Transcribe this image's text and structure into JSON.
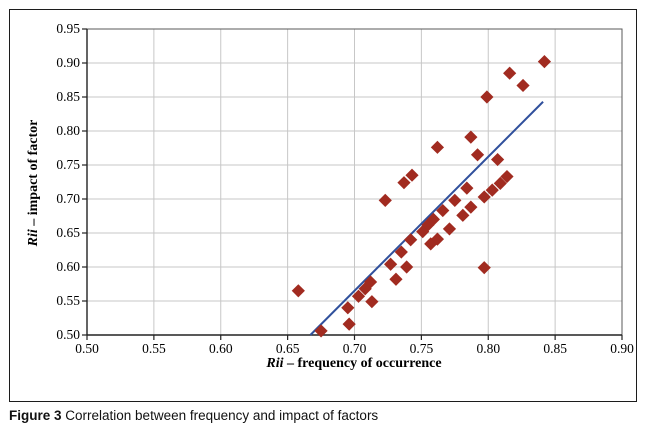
{
  "figure": {
    "caption_label": "Figure 3",
    "caption_text": " Correlation between frequency and impact of factors"
  },
  "chart_data": {
    "type": "scatter",
    "title": "",
    "xlabel_italic": "Rii",
    "xlabel_rest": " – frequency of occurrence",
    "ylabel_italic": "Rii",
    "ylabel_rest": " – impact of factor",
    "x_axis": {
      "min": 0.5,
      "max": 0.9,
      "tick_step": 0.05,
      "tick_labels": [
        "0.50",
        "0.55",
        "0.60",
        "0.65",
        "0.70",
        "0.75",
        "0.80",
        "0.85",
        "0.90"
      ]
    },
    "y_axis": {
      "min": 0.5,
      "max": 0.95,
      "tick_step": 0.05,
      "tick_labels": [
        "0.50",
        "0.55",
        "0.60",
        "0.65",
        "0.70",
        "0.75",
        "0.80",
        "0.85",
        "0.90",
        "0.95"
      ]
    },
    "grid": true,
    "legend": false,
    "series": [
      {
        "name": "factors",
        "marker": "diamond",
        "color": "#a12b20",
        "points": [
          [
            0.658,
            0.565
          ],
          [
            0.675,
            0.506
          ],
          [
            0.696,
            0.516
          ],
          [
            0.695,
            0.54
          ],
          [
            0.703,
            0.557
          ],
          [
            0.708,
            0.568
          ],
          [
            0.712,
            0.578
          ],
          [
            0.713,
            0.549
          ],
          [
            0.727,
            0.604
          ],
          [
            0.731,
            0.582
          ],
          [
            0.739,
            0.6
          ],
          [
            0.735,
            0.622
          ],
          [
            0.723,
            0.698
          ],
          [
            0.742,
            0.64
          ],
          [
            0.751,
            0.652
          ],
          [
            0.755,
            0.662
          ],
          [
            0.759,
            0.67
          ],
          [
            0.766,
            0.683
          ],
          [
            0.775,
            0.698
          ],
          [
            0.784,
            0.716
          ],
          [
            0.757,
            0.634
          ],
          [
            0.762,
            0.641
          ],
          [
            0.771,
            0.656
          ],
          [
            0.781,
            0.676
          ],
          [
            0.787,
            0.688
          ],
          [
            0.737,
            0.724
          ],
          [
            0.743,
            0.735
          ],
          [
            0.762,
            0.776
          ],
          [
            0.787,
            0.791
          ],
          [
            0.792,
            0.765
          ],
          [
            0.807,
            0.758
          ],
          [
            0.797,
            0.703
          ],
          [
            0.803,
            0.713
          ],
          [
            0.809,
            0.723
          ],
          [
            0.814,
            0.733
          ],
          [
            0.799,
            0.85
          ],
          [
            0.816,
            0.885
          ],
          [
            0.826,
            0.867
          ],
          [
            0.842,
            0.902
          ],
          [
            0.797,
            0.599
          ]
        ]
      }
    ],
    "trendline": {
      "color": "#30509c",
      "x1": 0.667,
      "y1": 0.5,
      "x2": 0.841,
      "y2": 0.843
    }
  },
  "colors": {
    "marker": "#a12b20",
    "trendline": "#30509c",
    "gridline": "#c7c7c7",
    "frame": "#5a5a5a",
    "axis": "#222222",
    "figure_border": "#1c1c1c"
  }
}
